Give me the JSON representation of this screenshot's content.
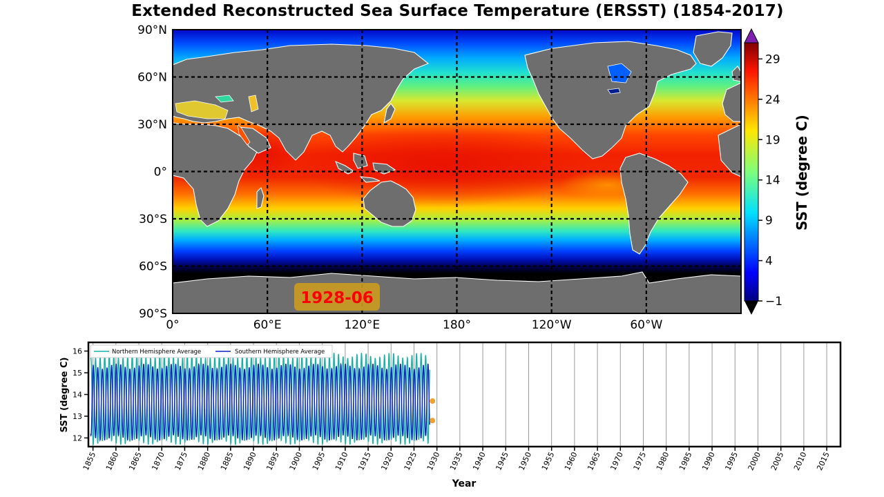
{
  "chart_data": [
    {
      "type": "heatmap",
      "title": "Extended Reconstructed Sea Surface Temperature (ERSST) (1854-2017)",
      "date_stamp": "1928-06",
      "lon_ticks": [
        "0°",
        "60°E",
        "120°E",
        "180°",
        "120°W",
        "60°W"
      ],
      "lat_ticks": [
        "90°N",
        "60°N",
        "30°N",
        "0°",
        "30°S",
        "60°S",
        "90°S"
      ],
      "colorbar": {
        "label": "SST (degree C)",
        "ticks": [
          "29",
          "24",
          "19",
          "14",
          "9",
          "4",
          "−1"
        ],
        "range": [
          -1,
          31
        ]
      },
      "grid": "dashed every 60° lon, 30° lat"
    },
    {
      "type": "line",
      "xlabel": "Year",
      "ylabel": "SST (degree C)",
      "xlim": [
        1854,
        2018
      ],
      "ylim": [
        11.6,
        16.4
      ],
      "x_ticks": [
        "1855",
        "1860",
        "1865",
        "1870",
        "1875",
        "1880",
        "1885",
        "1890",
        "1895",
        "1900",
        "1905",
        "1910",
        "1915",
        "1920",
        "1925",
        "1930",
        "1935",
        "1940",
        "1945",
        "1950",
        "1955",
        "1960",
        "1965",
        "1970",
        "1975",
        "1980",
        "1985",
        "1990",
        "1995",
        "2000",
        "2005",
        "2010",
        "2015"
      ],
      "y_ticks": [
        "16",
        "15",
        "14",
        "13",
        "12"
      ],
      "legend_position": "top-left",
      "series": [
        {
          "name": "Northern Hemisphere Average",
          "color": "#17b0a8",
          "range_min": 11.8,
          "range_max": 15.8,
          "last_value": 13.7
        },
        {
          "name": "Southern Hemisphere Average",
          "color": "#0a1fc4",
          "range_min": 12.0,
          "range_max": 15.3,
          "last_value": 12.8
        }
      ],
      "data_end": "1928-06"
    }
  ]
}
